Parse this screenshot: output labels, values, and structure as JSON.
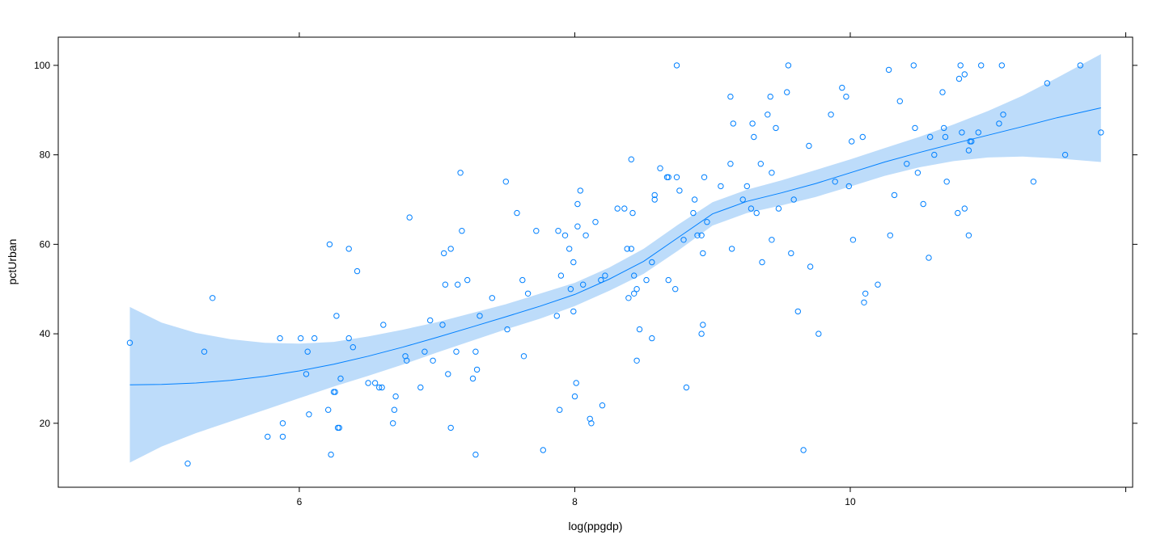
{
  "chart_data": {
    "type": "scatter",
    "title": "",
    "xlabel": "log(ppgdp)",
    "ylabel": "pctUrban",
    "xlim": [
      4.25,
      12.05
    ],
    "ylim": [
      5.7,
      106.3
    ],
    "x_ticks": [
      6,
      8,
      10,
      12
    ],
    "x_tick_labels": [
      "6",
      "8",
      "10",
      ""
    ],
    "y_ticks": [
      20,
      40,
      60,
      80,
      100
    ],
    "y_tick_labels": [
      "20",
      "40",
      "60",
      "80",
      "100"
    ],
    "grid": false,
    "legend": null,
    "colors": {
      "points": "#0080ff",
      "smooth_line": "#0080ff",
      "band_fill": "#bddcfa",
      "axes": "#000000"
    },
    "series": [
      {
        "name": "observations",
        "kind": "scatter",
        "points": [
          [
            4.77,
            38
          ],
          [
            5.19,
            11
          ],
          [
            5.31,
            36
          ],
          [
            5.37,
            48
          ],
          [
            5.77,
            17
          ],
          [
            5.86,
            39
          ],
          [
            5.88,
            20
          ],
          [
            5.88,
            17
          ],
          [
            6.01,
            39
          ],
          [
            6.05,
            31
          ],
          [
            6.06,
            36
          ],
          [
            6.07,
            22
          ],
          [
            6.11,
            39
          ],
          [
            6.21,
            23
          ],
          [
            6.22,
            60
          ],
          [
            6.23,
            13
          ],
          [
            6.25,
            27
          ],
          [
            6.26,
            27
          ],
          [
            6.27,
            44
          ],
          [
            6.28,
            19
          ],
          [
            6.29,
            19
          ],
          [
            6.3,
            30
          ],
          [
            6.36,
            39
          ],
          [
            6.36,
            59
          ],
          [
            6.39,
            37
          ],
          [
            6.42,
            54
          ],
          [
            6.5,
            29
          ],
          [
            6.55,
            29
          ],
          [
            6.58,
            28
          ],
          [
            6.6,
            28
          ],
          [
            6.61,
            42
          ],
          [
            6.68,
            20
          ],
          [
            6.69,
            23
          ],
          [
            6.7,
            26
          ],
          [
            6.77,
            35
          ],
          [
            6.78,
            34
          ],
          [
            6.8,
            66
          ],
          [
            6.88,
            28
          ],
          [
            6.91,
            36
          ],
          [
            6.95,
            43
          ],
          [
            6.97,
            34
          ],
          [
            7.04,
            42
          ],
          [
            7.05,
            58
          ],
          [
            7.06,
            51
          ],
          [
            7.08,
            31
          ],
          [
            7.1,
            19
          ],
          [
            7.1,
            59
          ],
          [
            7.14,
            36
          ],
          [
            7.15,
            51
          ],
          [
            7.17,
            76
          ],
          [
            7.18,
            63
          ],
          [
            7.22,
            52
          ],
          [
            7.26,
            30
          ],
          [
            7.28,
            36
          ],
          [
            7.28,
            13
          ],
          [
            7.29,
            32
          ],
          [
            7.31,
            44
          ],
          [
            7.4,
            48
          ],
          [
            7.5,
            74
          ],
          [
            7.51,
            41
          ],
          [
            7.58,
            67
          ],
          [
            7.62,
            52
          ],
          [
            7.63,
            35
          ],
          [
            7.66,
            49
          ],
          [
            7.72,
            63
          ],
          [
            7.77,
            14
          ],
          [
            7.87,
            44
          ],
          [
            7.88,
            63
          ],
          [
            7.89,
            23
          ],
          [
            7.9,
            53
          ],
          [
            7.93,
            62
          ],
          [
            7.96,
            59
          ],
          [
            7.97,
            50
          ],
          [
            7.99,
            56
          ],
          [
            7.99,
            45
          ],
          [
            8,
            26
          ],
          [
            8.01,
            29
          ],
          [
            8.02,
            64
          ],
          [
            8.02,
            69
          ],
          [
            8.04,
            72
          ],
          [
            8.06,
            51
          ],
          [
            8.08,
            62
          ],
          [
            8.11,
            21
          ],
          [
            8.12,
            20
          ],
          [
            8.15,
            65
          ],
          [
            8.19,
            52
          ],
          [
            8.2,
            24
          ],
          [
            8.22,
            53
          ],
          [
            8.31,
            68
          ],
          [
            8.36,
            68
          ],
          [
            8.38,
            59
          ],
          [
            8.39,
            48
          ],
          [
            8.41,
            59
          ],
          [
            8.41,
            79
          ],
          [
            8.42,
            67
          ],
          [
            8.43,
            49
          ],
          [
            8.43,
            53
          ],
          [
            8.45,
            50
          ],
          [
            8.45,
            34
          ],
          [
            8.47,
            41
          ],
          [
            8.52,
            52
          ],
          [
            8.56,
            39
          ],
          [
            8.56,
            56
          ],
          [
            8.58,
            70
          ],
          [
            8.58,
            71
          ],
          [
            8.62,
            77
          ],
          [
            8.67,
            75
          ],
          [
            8.68,
            75
          ],
          [
            8.68,
            52
          ],
          [
            8.73,
            50
          ],
          [
            8.74,
            100
          ],
          [
            8.74,
            75
          ],
          [
            8.76,
            72
          ],
          [
            8.79,
            61
          ],
          [
            8.81,
            28
          ],
          [
            8.86,
            67
          ],
          [
            8.87,
            70
          ],
          [
            8.89,
            62
          ],
          [
            8.92,
            62
          ],
          [
            8.92,
            40
          ],
          [
            8.93,
            42
          ],
          [
            8.93,
            58
          ],
          [
            8.94,
            75
          ],
          [
            8.96,
            65
          ],
          [
            9.06,
            73
          ],
          [
            9.13,
            93
          ],
          [
            9.13,
            78
          ],
          [
            9.14,
            59
          ],
          [
            9.15,
            87
          ],
          [
            9.22,
            70
          ],
          [
            9.25,
            73
          ],
          [
            9.28,
            68
          ],
          [
            9.29,
            87
          ],
          [
            9.3,
            84
          ],
          [
            9.32,
            67
          ],
          [
            9.35,
            78
          ],
          [
            9.36,
            56
          ],
          [
            9.4,
            89
          ],
          [
            9.42,
            93
          ],
          [
            9.43,
            76
          ],
          [
            9.43,
            61
          ],
          [
            9.46,
            86
          ],
          [
            9.48,
            68
          ],
          [
            9.54,
            94
          ],
          [
            9.55,
            100
          ],
          [
            9.57,
            58
          ],
          [
            9.59,
            70
          ],
          [
            9.62,
            45
          ],
          [
            9.66,
            14
          ],
          [
            9.7,
            82
          ],
          [
            9.71,
            55
          ],
          [
            9.77,
            40
          ],
          [
            9.86,
            89
          ],
          [
            9.89,
            74
          ],
          [
            9.94,
            95
          ],
          [
            9.97,
            93
          ],
          [
            9.99,
            73
          ],
          [
            10.01,
            83
          ],
          [
            10.02,
            61
          ],
          [
            10.09,
            84
          ],
          [
            10.1,
            47
          ],
          [
            10.11,
            49
          ],
          [
            10.2,
            51
          ],
          [
            10.28,
            99
          ],
          [
            10.29,
            62
          ],
          [
            10.32,
            71
          ],
          [
            10.36,
            92
          ],
          [
            10.41,
            78
          ],
          [
            10.46,
            100
          ],
          [
            10.47,
            86
          ],
          [
            10.49,
            76
          ],
          [
            10.53,
            69
          ],
          [
            10.57,
            57
          ],
          [
            10.58,
            84
          ],
          [
            10.61,
            80
          ],
          [
            10.67,
            94
          ],
          [
            10.68,
            86
          ],
          [
            10.69,
            84
          ],
          [
            10.7,
            74
          ],
          [
            10.78,
            67
          ],
          [
            10.79,
            97
          ],
          [
            10.8,
            100
          ],
          [
            10.81,
            85
          ],
          [
            10.83,
            68
          ],
          [
            10.83,
            98
          ],
          [
            10.86,
            62
          ],
          [
            10.86,
            81
          ],
          [
            10.87,
            83
          ],
          [
            10.88,
            83
          ],
          [
            10.93,
            85
          ],
          [
            10.95,
            100
          ],
          [
            11.08,
            87
          ],
          [
            11.1,
            100
          ],
          [
            11.11,
            89
          ],
          [
            11.33,
            74
          ],
          [
            11.43,
            96
          ],
          [
            11.56,
            80
          ],
          [
            11.67,
            100
          ],
          [
            11.82,
            85
          ]
        ]
      },
      {
        "name": "loess smooth",
        "kind": "line",
        "x": [
          4.77,
          5.0,
          5.25,
          5.5,
          5.75,
          6.0,
          6.25,
          6.5,
          6.75,
          7.0,
          7.25,
          7.5,
          7.75,
          8.0,
          8.25,
          8.5,
          8.75,
          9.0,
          9.25,
          9.5,
          9.75,
          10.0,
          10.25,
          10.5,
          10.75,
          11.0,
          11.25,
          11.5,
          11.82
        ],
        "y": [
          28.6,
          28.7,
          29.0,
          29.6,
          30.5,
          31.7,
          33.2,
          35.0,
          37.0,
          39.2,
          41.5,
          43.8,
          46.2,
          48.8,
          52.2,
          56.2,
          61.5,
          66.8,
          69.6,
          71.5,
          73.6,
          76.0,
          78.4,
          80.5,
          82.5,
          84.4,
          86.3,
          88.3,
          90.5
        ]
      },
      {
        "name": "confidence band",
        "kind": "band",
        "x": [
          4.77,
          5.0,
          5.25,
          5.5,
          5.75,
          6.0,
          6.25,
          6.5,
          6.75,
          7.0,
          7.25,
          7.5,
          7.75,
          8.0,
          8.25,
          8.5,
          8.75,
          9.0,
          9.25,
          9.5,
          9.75,
          10.0,
          10.25,
          10.5,
          10.75,
          11.0,
          11.25,
          11.5,
          11.82
        ],
        "upper": [
          46.0,
          42.5,
          40.2,
          38.8,
          38.0,
          37.8,
          38.2,
          39.4,
          40.9,
          42.6,
          44.6,
          46.6,
          49.0,
          51.4,
          54.8,
          59.0,
          64.4,
          69.4,
          72.2,
          74.3,
          76.6,
          79.0,
          81.5,
          84.0,
          86.8,
          89.8,
          93.2,
          97.2,
          102.5
        ],
        "lower": [
          11.2,
          14.8,
          17.8,
          20.4,
          23.0,
          25.6,
          28.2,
          30.6,
          33.1,
          35.8,
          38.4,
          41.0,
          43.4,
          46.2,
          49.6,
          53.4,
          58.6,
          64.2,
          67.0,
          68.7,
          70.6,
          72.9,
          75.3,
          77.2,
          78.6,
          79.4,
          79.6,
          79.2,
          78.4
        ]
      }
    ]
  }
}
